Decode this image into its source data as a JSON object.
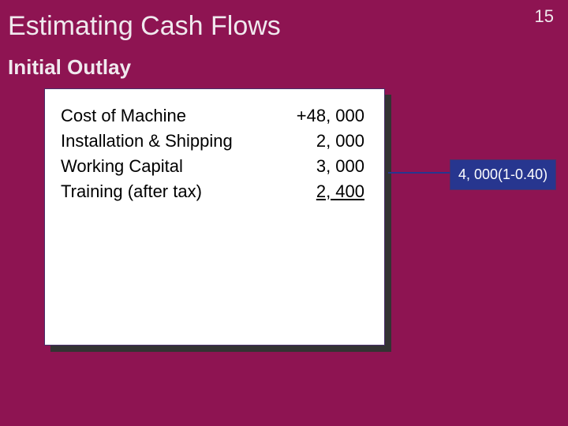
{
  "slide": {
    "title": "Estimating Cash Flows",
    "page_number": "15",
    "subtitle": "Initial Outlay",
    "background_color": "#8e1452",
    "title_color": "#f0e9ee",
    "title_fontsize": 34,
    "subtitle_fontsize": 26
  },
  "card": {
    "background_color": "#ffffff",
    "shadow_color": "#333333",
    "border_color": "#4a2f6b",
    "rows": [
      {
        "label": "Cost of Machine",
        "value": "+48, 000",
        "underline": false
      },
      {
        "label": "Installation & Shipping",
        "value": "2, 000",
        "underline": false
      },
      {
        "label": "Working Capital",
        "value": "3, 000",
        "underline": false
      },
      {
        "label": "Training (after tax)",
        "value": "2, 400",
        "underline": true
      }
    ],
    "row_fontsize": 22,
    "row_color": "#000000"
  },
  "annotation": {
    "text": "4, 000(1-0.40)",
    "background_color": "#27368f",
    "text_color": "#ffffff",
    "fontsize": 18
  }
}
